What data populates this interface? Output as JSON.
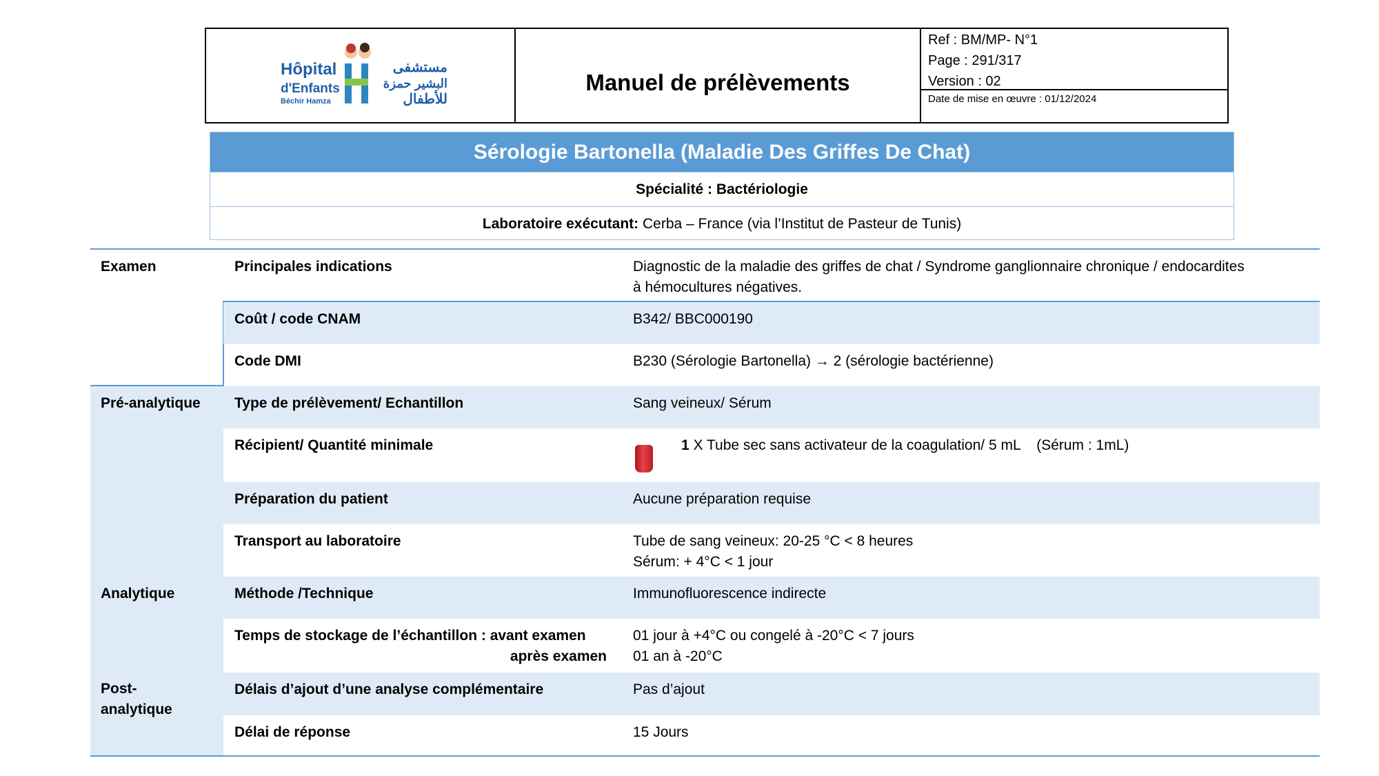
{
  "header": {
    "logo": {
      "name_fr": "Hôpital d'Enfants Béchir Hamza",
      "name_ar": "مستشفى البشير حمزة للأطفال"
    },
    "title": "Manuel de prélèvements",
    "ref": "Ref : BM/MP- N°1",
    "page": "Page : 291/317",
    "version": "Version : 02",
    "date": "Date de mise en œuvre : 01/12/2024"
  },
  "exam": {
    "title": "Sérologie Bartonella (Maladie Des Griffes De Chat)",
    "specialite": "Spécialité : Bactériologie",
    "labo_label": "Laboratoire exécutant:",
    "labo_value": " Cerba – France (via l’Institut de Pasteur de Tunis)"
  },
  "sections": {
    "examen": "Examen",
    "pre": "Pré-analytique",
    "analytique": "Analytique",
    "post1": "Post-",
    "post2": "analytique"
  },
  "rows": [
    {
      "label": "Principales indications",
      "value": "Diagnostic de la maladie des griffes de chat / Syndrome ganglionnaire chronique / endocardites",
      "value2": "à hémocultures négatives."
    },
    {
      "label": "Coût / code CNAM",
      "value": "B342/ BBC000190"
    },
    {
      "label": "Code DMI",
      "value": "B230 (Sérologie Bartonella) → 2 (sérologie bactérienne)"
    },
    {
      "label": "Type de prélèvement/ Echantillon",
      "value": "Sang veineux/ Sérum"
    },
    {
      "label": "Récipient/ Quantité minimale",
      "qty": "1",
      "value": " X Tube sec sans activateur de la coagulation/ 5 mL    (Sérum : 1mL)",
      "tube_color": "#d9262e"
    },
    {
      "label": "Préparation du patient",
      "value": "Aucune préparation requise"
    },
    {
      "label": "Transport au laboratoire",
      "value": "Tube de sang veineux: 20-25 °C < 8 heures",
      "value2": "Sérum: + 4°C < 1 jour"
    },
    {
      "label": "Méthode /Technique",
      "value": "Immunofluorescence indirecte"
    },
    {
      "label": "Temps de stockage de l’échantillon : avant examen",
      "label2": "après examen",
      "value": "01 jour à +4°C ou congelé à -20°C < 7 jours",
      "value2": "01 an à -20°C"
    },
    {
      "label": "Délais d’ajout d’une analyse complémentaire",
      "value": "Pas d’ajout"
    },
    {
      "label": "Délai de réponse",
      "value": "15 Jours"
    }
  ]
}
